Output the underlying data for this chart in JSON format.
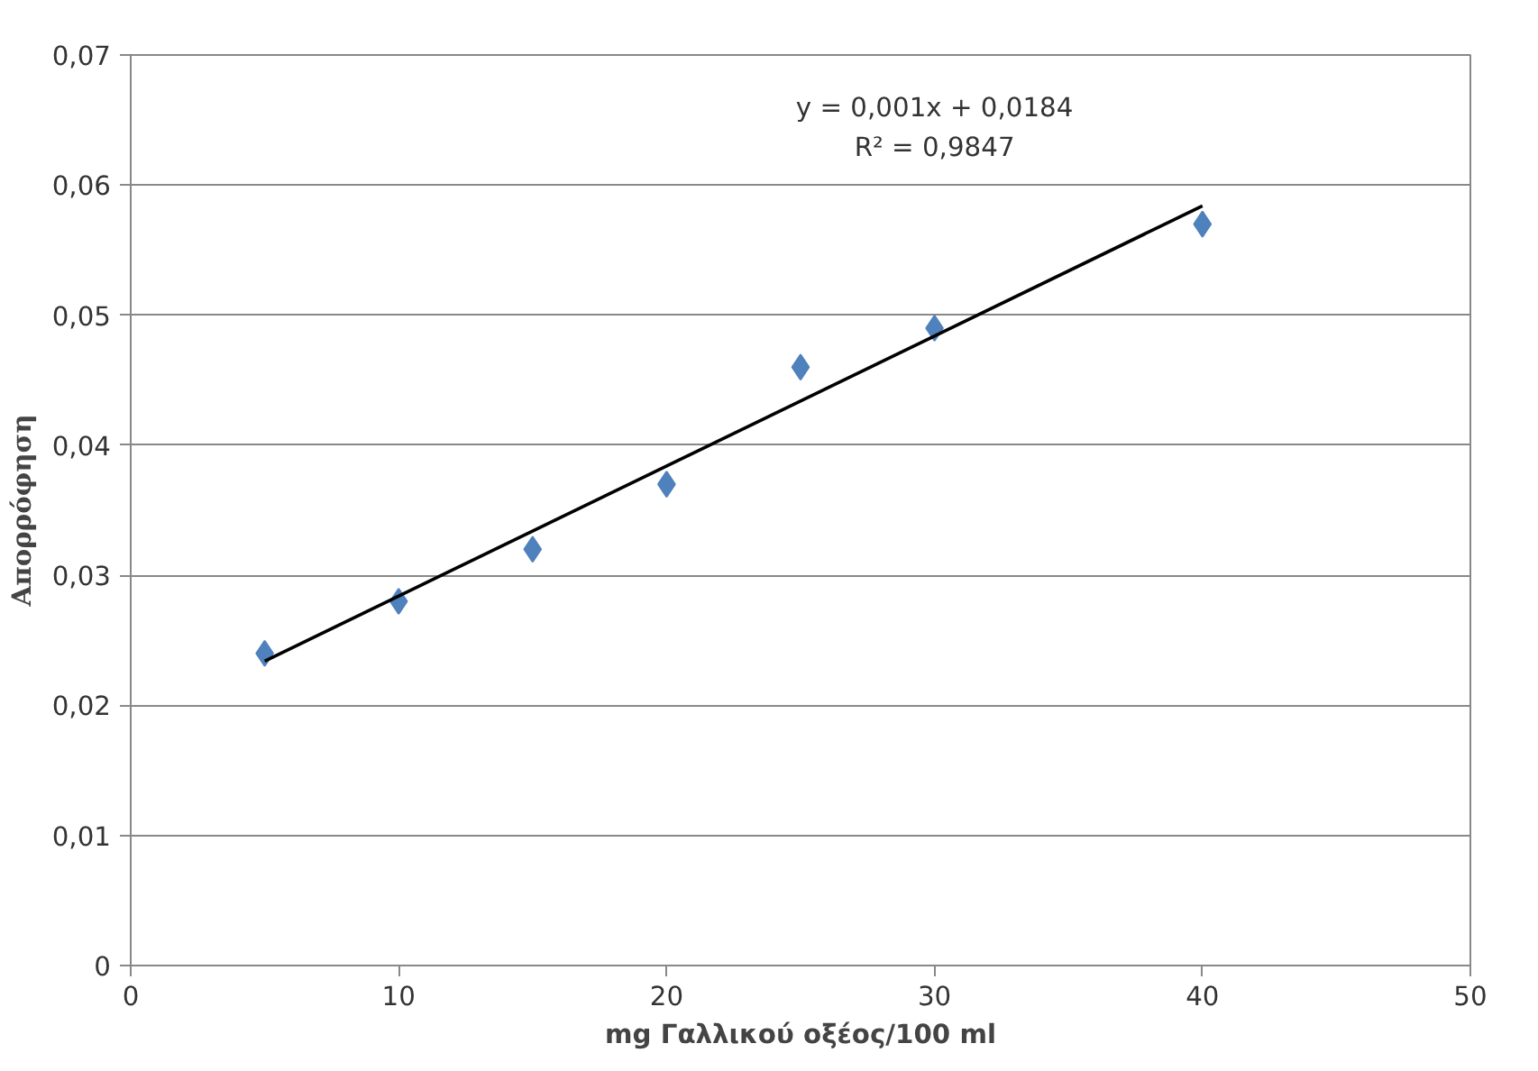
{
  "chart_data": {
    "type": "scatter",
    "xlabel": "mg Γαλλικού οξέος/100 ml",
    "ylabel": "Απορρόφηση",
    "x": [
      5,
      10,
      15,
      20,
      25,
      30,
      40
    ],
    "series": [
      {
        "color": "#4f81bd",
        "marker": "diamond",
        "values": [
          0.024,
          0.028,
          0.032,
          0.037,
          0.046,
          0.049,
          0.057
        ]
      },
      {
        "type": "line",
        "color": "#000000",
        "x": [
          5,
          40
        ],
        "values": [
          0.0234,
          0.0584
        ]
      }
    ],
    "annotations": [
      "y = 0,001x + 0,0184",
      "R² = 0,9847"
    ],
    "xlim": [
      0,
      50
    ],
    "xticks": [
      0,
      10,
      20,
      30,
      40,
      50
    ],
    "ylim": [
      0,
      0.07
    ],
    "yticks": [
      {
        "value": 0,
        "label": "0"
      },
      {
        "value": 0.01,
        "label": "0,01"
      },
      {
        "value": 0.02,
        "label": "0,02"
      },
      {
        "value": 0.03,
        "label": "0,03"
      },
      {
        "value": 0.04,
        "label": "0,04"
      },
      {
        "value": 0.05,
        "label": "0,05"
      },
      {
        "value": 0.06,
        "label": "0,06"
      },
      {
        "value": 0.07,
        "label": "0,07"
      }
    ],
    "grid": "y"
  }
}
